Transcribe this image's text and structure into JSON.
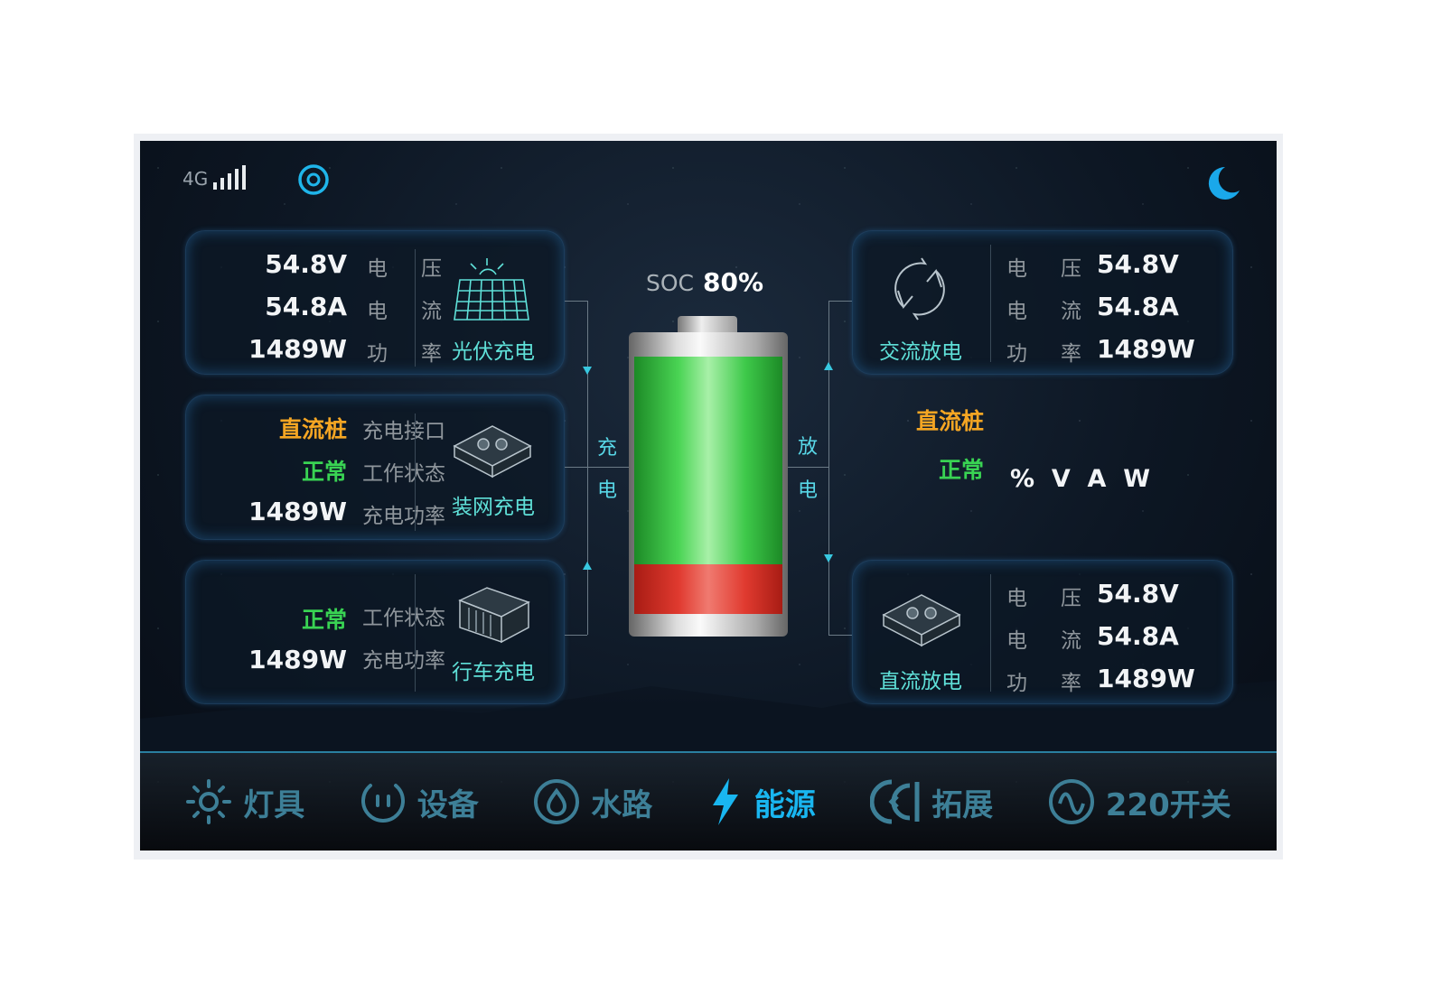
{
  "status": {
    "network": "4G",
    "signal_level": 4,
    "signal_max": 5
  },
  "soc": {
    "label": "SOC",
    "value": "80%",
    "level_percent": 80,
    "red_fraction_percent": 20
  },
  "flow": {
    "charge": [
      "充",
      "电"
    ],
    "discharge": [
      "放",
      "电"
    ]
  },
  "left": [
    {
      "title": "光伏充电",
      "icon": "solar-panel-icon",
      "rows": [
        {
          "value": "54.8V",
          "label": [
            "电",
            "压"
          ]
        },
        {
          "value": "54.8A",
          "label": [
            "电",
            "流"
          ]
        },
        {
          "value": "1489W",
          "label": [
            "功",
            "率"
          ]
        }
      ]
    },
    {
      "title": "装网充电",
      "icon": "charger-box-icon",
      "rows": [
        {
          "value": "直流桩",
          "label": "充电接口"
        },
        {
          "value": "正常",
          "label": "工作状态"
        },
        {
          "value": "1489W",
          "label": "充电功率"
        }
      ]
    },
    {
      "title": "行车充电",
      "icon": "alternator-icon",
      "rows": [
        {
          "value": "正常",
          "label": "工作状态"
        },
        {
          "value": "1489W",
          "label": "充电功率"
        }
      ]
    }
  ],
  "right": [
    {
      "title": "交流放电",
      "icon": "ac-cycle-icon",
      "rows": [
        {
          "value": "54.8V",
          "label": [
            "电",
            "压"
          ]
        },
        {
          "value": "54.8A",
          "label": [
            "电",
            "流"
          ]
        },
        {
          "value": "1489W",
          "label": [
            "功",
            "率"
          ]
        }
      ]
    },
    {
      "type": "直流桩",
      "state": "正常",
      "units": "%  V  A  W"
    },
    {
      "title": "直流放电",
      "icon": "dc-box-icon",
      "rows": [
        {
          "value": "54.8V",
          "label": [
            "电",
            "压"
          ]
        },
        {
          "value": "54.8A",
          "label": [
            "电",
            "流"
          ]
        },
        {
          "value": "1489W",
          "label": [
            "功",
            "率"
          ]
        }
      ]
    }
  ],
  "colors": {
    "accent": "#19b6f0",
    "orange": "#f5a623",
    "green": "#39d353",
    "battery_green": "#3ec94a",
    "battery_red": "#e03a2f"
  },
  "nav": [
    {
      "label": "灯具",
      "icon": "sun-icon"
    },
    {
      "label": "设备",
      "icon": "power-socket-icon"
    },
    {
      "label": "水路",
      "icon": "water-drop-icon"
    },
    {
      "label": "能源",
      "icon": "lightning-icon",
      "active": true
    },
    {
      "label": "拓展",
      "icon": "expand-icon"
    },
    {
      "label": "220开关",
      "icon": "ac-wave-icon"
    }
  ]
}
